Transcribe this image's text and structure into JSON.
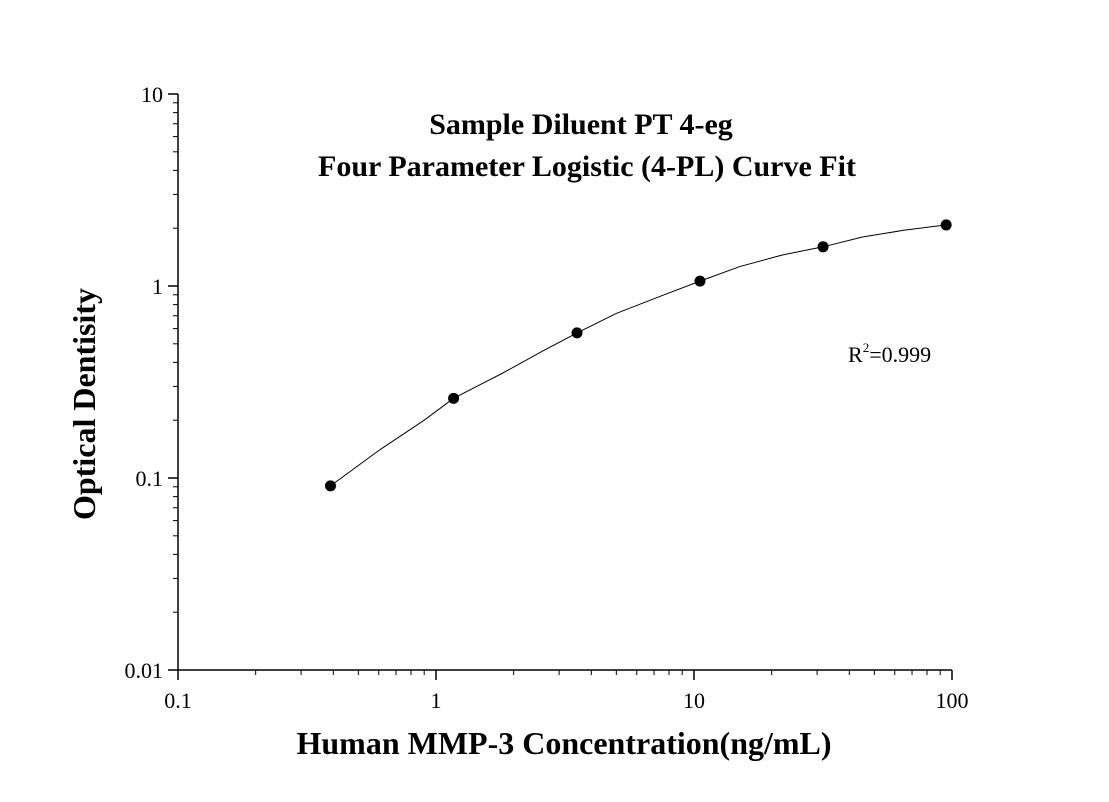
{
  "chart_data": {
    "type": "scatter",
    "title": "Sample Diluent PT 4-eg",
    "subtitle": "Four Parameter Logistic (4-PL) Curve Fit",
    "xlabel": "Human MMP-3 Concentration(ng/mL)",
    "ylabel": "Optical Dentisity",
    "xscale": "log",
    "yscale": "log",
    "xlim": [
      0.1,
      100
    ],
    "ylim": [
      0.01,
      10
    ],
    "x_ticks": [
      0.1,
      1,
      10,
      100
    ],
    "x_tick_labels": [
      "0.1",
      "1",
      "10",
      "100"
    ],
    "y_ticks": [
      0.01,
      0.1,
      1,
      10
    ],
    "y_tick_labels": [
      "0.01",
      "0.1",
      "1",
      "10"
    ],
    "grid": false,
    "legend": "none",
    "series": [
      {
        "x": [
          0.39,
          1.17,
          3.52,
          10.55,
          31.64,
          94.92
        ],
        "y": [
          0.091,
          0.26,
          0.57,
          1.06,
          1.6,
          2.08
        ]
      }
    ],
    "fit_curve": {
      "model": "4-PL",
      "x": [
        0.39,
        0.6,
        0.9,
        1.17,
        1.8,
        2.6,
        3.52,
        5.0,
        7.5,
        10.55,
        15,
        22,
        31.64,
        45,
        65,
        94.92
      ],
      "y": [
        0.091,
        0.139,
        0.2,
        0.26,
        0.35,
        0.46,
        0.57,
        0.72,
        0.89,
        1.06,
        1.26,
        1.45,
        1.6,
        1.8,
        1.95,
        2.08
      ]
    },
    "annotation": {
      "base": "R",
      "sup": "2",
      "rest": "=0.999"
    },
    "colors": {
      "points": "#000000",
      "line": "#000000",
      "axes": "#000000"
    }
  }
}
